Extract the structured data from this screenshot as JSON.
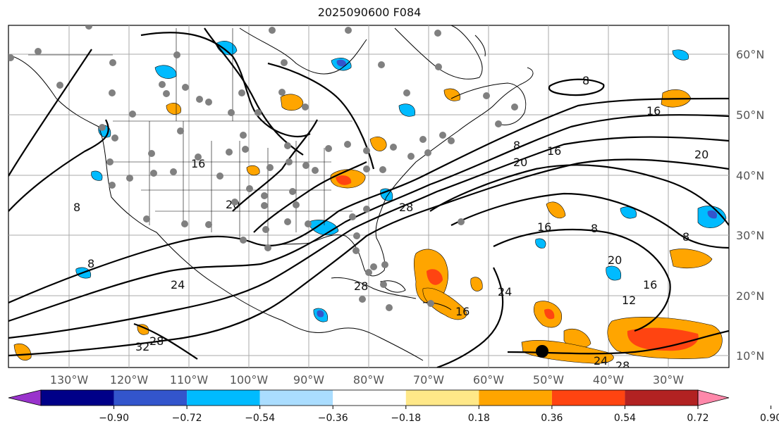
{
  "title": "2025090600 F084",
  "lon_labels": [
    "130°W",
    "120°W",
    "110°W",
    "100°W",
    "90°W",
    "80°W",
    "70°W",
    "60°W",
    "50°W",
    "40°W",
    "30°W"
  ],
  "lat_labels": [
    "60°N",
    "50°N",
    "40°N",
    "30°N",
    "20°N",
    "10°N"
  ],
  "colorbar": {
    "ticks": [
      "−0.90",
      "−0.72",
      "−0.54",
      "−0.36",
      "−0.18",
      "0.18",
      "0.36",
      "0.54",
      "0.72",
      "0.90"
    ],
    "colors": [
      "#9933cc",
      "#000088",
      "#3355cc",
      "#00bbff",
      "#aaddff",
      "#ffffff",
      "#ffe888",
      "#ffa500",
      "#ff4411",
      "#b22222",
      "#ff88aa"
    ]
  },
  "contour_labels": [
    "8",
    "16",
    "20",
    "24",
    "28",
    "12",
    "32"
  ],
  "colors": {
    "contour": "#000000",
    "grid": "#aaaaaa",
    "station": "#808080",
    "positive_anomaly": "#ffa500",
    "strong_positive": "#ff4411",
    "negative_anomaly": "#00bbff",
    "strong_negative": "#3355cc"
  }
}
